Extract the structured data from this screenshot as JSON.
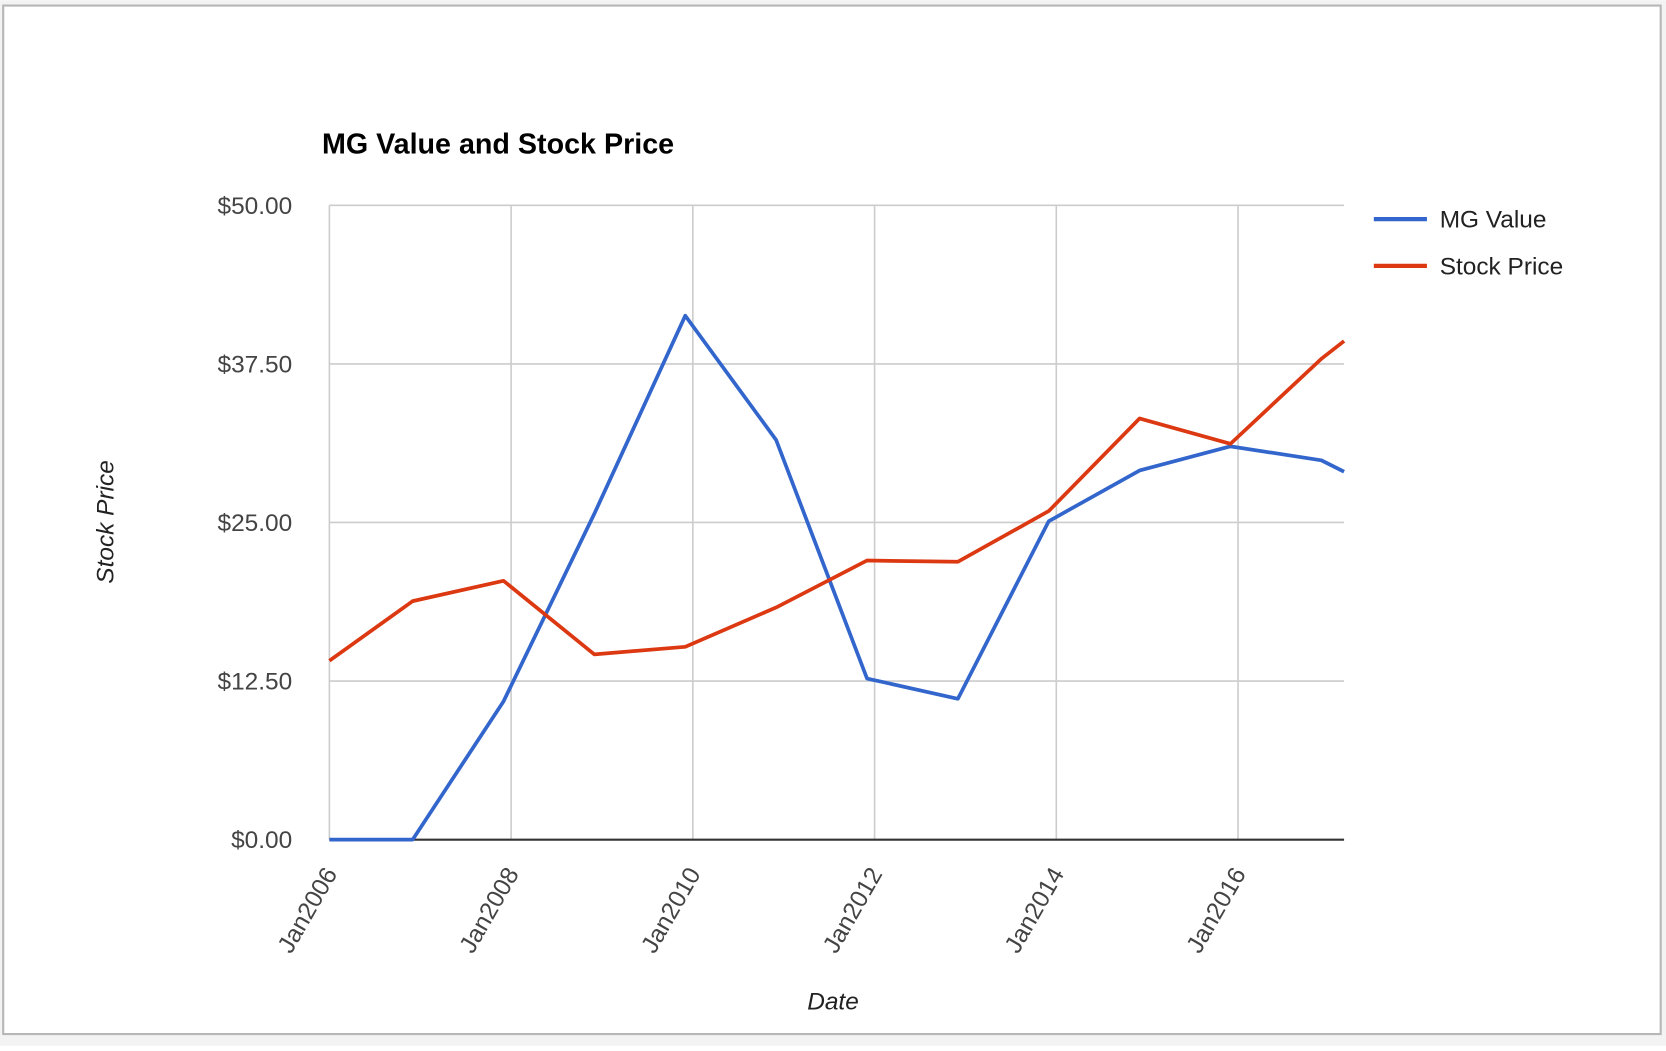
{
  "chart_data": {
    "type": "line",
    "title": "MG Value and Stock Price",
    "x_label": "Date",
    "y_label": "Stock Price",
    "x": [
      "2006-01",
      "2006-12",
      "2007-12",
      "2008-12",
      "2009-12",
      "2010-12",
      "2011-12",
      "2012-12",
      "2013-12",
      "2014-12",
      "2015-12",
      "2016-12",
      "2017-03"
    ],
    "series": [
      {
        "name": "MG Value",
        "color": "#3366cc",
        "values": [
          0,
          0,
          10.9,
          25.7,
          41.3,
          31.5,
          12.7,
          11.1,
          25.1,
          29.1,
          31.0,
          29.9,
          29.0
        ]
      },
      {
        "name": "Stock Price",
        "color": "#dc3912",
        "values": [
          14.1,
          18.8,
          20.4,
          14.6,
          15.2,
          18.3,
          22.0,
          21.9,
          25.9,
          33.2,
          31.2,
          37.9,
          39.3
        ]
      }
    ],
    "xlim": [
      "2006-01",
      "2017-03"
    ],
    "xticks": [
      {
        "value": "2006-01",
        "label": "Jan2006"
      },
      {
        "value": "2008-01",
        "label": "Jan2008"
      },
      {
        "value": "2010-01",
        "label": "Jan2010"
      },
      {
        "value": "2012-01",
        "label": "Jan2012"
      },
      {
        "value": "2014-01",
        "label": "Jan2014"
      },
      {
        "value": "2016-01",
        "label": "Jan2016"
      }
    ],
    "ylim": [
      0,
      50
    ],
    "yticks": [
      {
        "value": 0,
        "label": "$0.00"
      },
      {
        "value": 12.5,
        "label": "$12.50"
      },
      {
        "value": 25,
        "label": "$25.00"
      },
      {
        "value": 37.5,
        "label": "$37.50"
      },
      {
        "value": 50,
        "label": "$50.00"
      }
    ],
    "grid": true,
    "legend": "right"
  }
}
